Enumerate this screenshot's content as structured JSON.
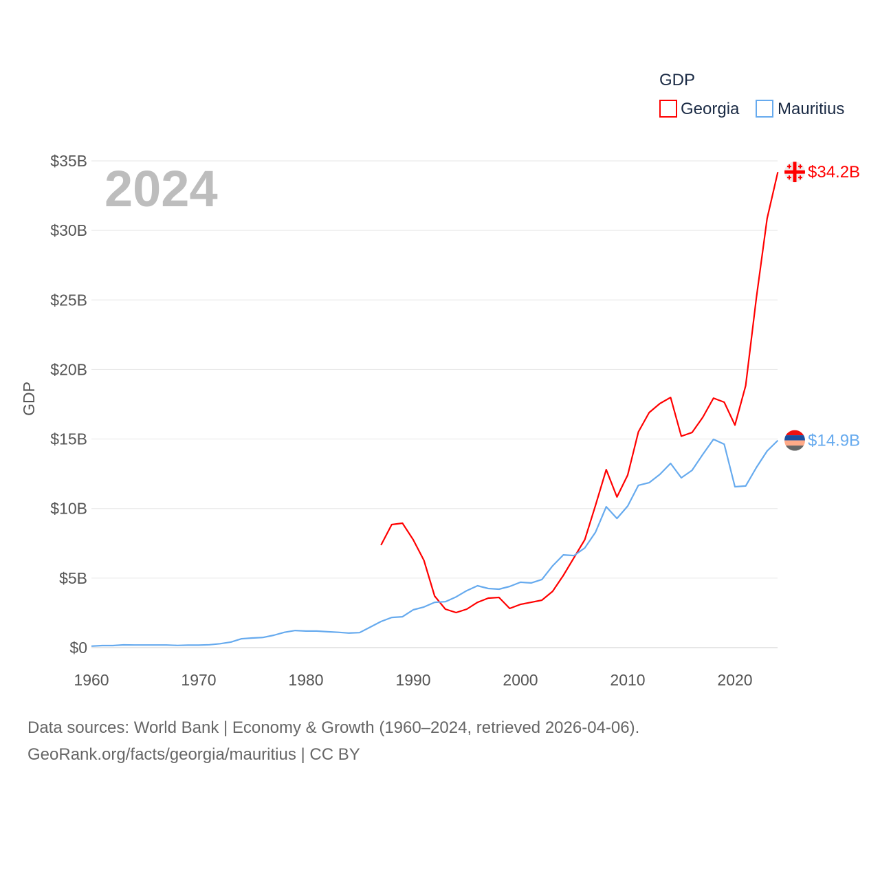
{
  "chart_data": {
    "type": "line",
    "title": "",
    "ylabel": "GDP",
    "xlabel": "",
    "year_label": "2024",
    "legend": {
      "title": "GDP",
      "placement": "top-right"
    },
    "xlim": [
      1960,
      2024
    ],
    "ylim": [
      0,
      35
    ],
    "x_ticks": [
      1960,
      1970,
      1980,
      1990,
      2000,
      2010,
      2020
    ],
    "y_ticks": [
      0,
      5,
      10,
      15,
      20,
      25,
      30,
      35
    ],
    "y_tick_labels": [
      "$0",
      "$5B",
      "$10B",
      "$15B",
      "$20B",
      "$25B",
      "$30B",
      "$35B"
    ],
    "grid": true,
    "series": [
      {
        "name": "Georgia",
        "color": "#ff0000",
        "end_label": "$34.2B",
        "flag": "georgia-flag",
        "start_year": 1987,
        "values": [
          7.37,
          8.85,
          8.95,
          7.76,
          6.28,
          3.71,
          2.77,
          2.52,
          2.77,
          3.26,
          3.56,
          3.61,
          2.82,
          3.11,
          3.26,
          3.41,
          4.05,
          5.19,
          6.48,
          7.76,
          10.23,
          12.8,
          10.83,
          12.41,
          15.52,
          16.9,
          17.55,
          17.99,
          15.2,
          15.47,
          16.56,
          17.94,
          17.65,
          16.0,
          18.83,
          25.16,
          30.85,
          34.2
        ]
      },
      {
        "name": "Mauritius",
        "color": "#66aaee",
        "end_label": "$14.9B",
        "flag": "mauritius-flag",
        "start_year": 1960,
        "values": [
          0.11,
          0.15,
          0.15,
          0.2,
          0.19,
          0.19,
          0.19,
          0.19,
          0.16,
          0.18,
          0.18,
          0.21,
          0.28,
          0.4,
          0.64,
          0.69,
          0.73,
          0.89,
          1.1,
          1.23,
          1.19,
          1.19,
          1.14,
          1.1,
          1.05,
          1.08,
          1.48,
          1.88,
          2.17,
          2.22,
          2.72,
          2.92,
          3.26,
          3.3,
          3.65,
          4.1,
          4.45,
          4.25,
          4.2,
          4.4,
          4.7,
          4.65,
          4.9,
          5.88,
          6.67,
          6.62,
          7.17,
          8.3,
          10.13,
          9.29,
          10.18,
          11.67,
          11.86,
          12.46,
          13.25,
          12.21,
          12.75,
          13.89,
          14.98,
          14.63,
          11.57,
          11.62,
          12.95,
          14.14,
          14.9
        ]
      }
    ]
  },
  "footer": {
    "line1": "Data sources: World Bank | Economy & Growth (1960–2024, retrieved 2026-04-06).",
    "line2": "GeoRank.org/facts/georgia/mauritius | CC BY"
  }
}
